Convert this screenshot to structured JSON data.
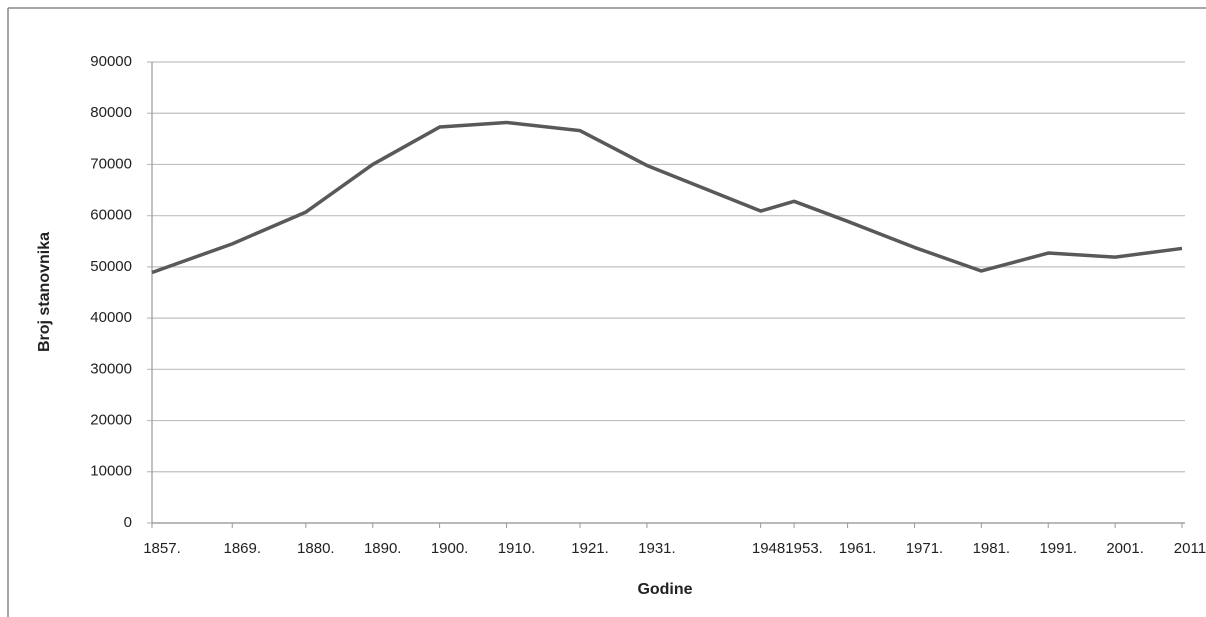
{
  "chart_data": {
    "type": "line",
    "x_label": "Godine",
    "y_label": "Broj stanovnika",
    "x": [
      1857,
      1869,
      1880,
      1890,
      1900,
      1910,
      1921,
      1931,
      1948,
      1953,
      1961,
      1971,
      1981,
      1991,
      2001,
      2011
    ],
    "series": [
      {
        "name": "Broj stanovnika",
        "color": "#595959",
        "values": [
          48900,
          54500,
          60700,
          70000,
          77300,
          78200,
          76600,
          69800,
          60900,
          62800,
          58900,
          53800,
          49200,
          52700,
          51900,
          53600
        ]
      }
    ],
    "xlim": [
      1857,
      2011
    ],
    "xticks": [
      {
        "value": 1857,
        "label": "1857."
      },
      {
        "value": 1869,
        "label": "1869."
      },
      {
        "value": 1880,
        "label": "1880."
      },
      {
        "value": 1890,
        "label": "1890."
      },
      {
        "value": 1900,
        "label": "1900."
      },
      {
        "value": 1910,
        "label": "1910."
      },
      {
        "value": 1921,
        "label": "1921."
      },
      {
        "value": 1931,
        "label": "1931."
      },
      {
        "value": 1948,
        "label": "1948."
      },
      {
        "value": 1953,
        "label": "1953."
      },
      {
        "value": 1961,
        "label": "1961."
      },
      {
        "value": 1971,
        "label": "1971."
      },
      {
        "value": 1981,
        "label": "1981."
      },
      {
        "value": 1991,
        "label": "1991."
      },
      {
        "value": 2001,
        "label": "2001."
      },
      {
        "value": 2011,
        "label": "2011."
      }
    ],
    "ylim": [
      0,
      90000
    ],
    "yticks": [
      0,
      10000,
      20000,
      30000,
      40000,
      50000,
      60000,
      70000,
      80000,
      90000
    ],
    "grid": true
  }
}
